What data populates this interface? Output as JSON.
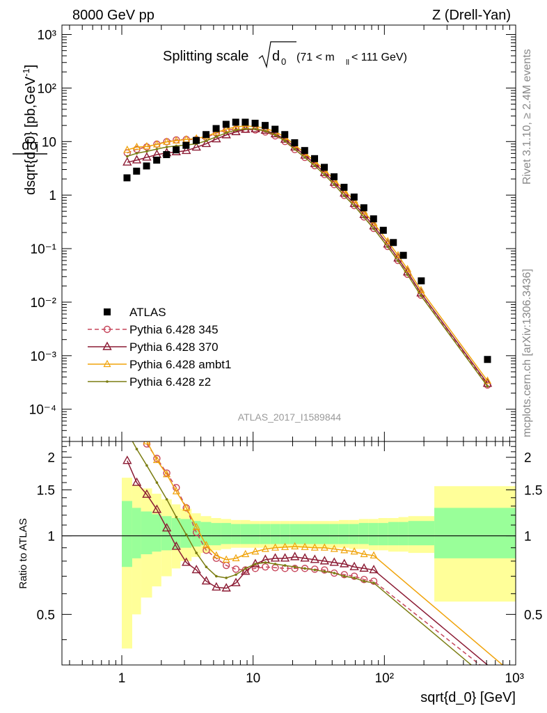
{
  "header": {
    "left": "8000 GeV pp",
    "right": "Z (Drell-Yan)"
  },
  "side_text": {
    "rivet": "Rivet 3.1.10, ≥ 2.4M events",
    "mcplots": "mcplots.cern.ch [arXiv:1306.3436]"
  },
  "chart_data": {
    "type": "scatter",
    "title_main": "Splitting scale",
    "title_sqrt": "d",
    "title_sub": "0",
    "title_range_a": "(71 < m",
    "title_range_sub": "ll",
    "title_range_b": " < 111 GeV)",
    "watermark": "ATLAS_2017_I1589844",
    "ylabel_top": "dσ",
    "ylabel_bottom": "dsqrt{d_0} [pb,GeV",
    "ylabel_sup": "-1",
    "ylabel_end": "]",
    "ratio_ylabel": "Ratio to ATLAS",
    "xlabel": "sqrt{d_0} [GeV]",
    "x_scale": "log",
    "xlim": [
      0.35,
      1000
    ],
    "y_scale": "log",
    "ylim": [
      2.5e-05,
      1500
    ],
    "ratio_ylim": [
      0.32,
      2.3
    ],
    "x_ticks": [
      "1",
      "10",
      "10²",
      "10³"
    ],
    "y_ticks": [
      "10³",
      "10²",
      "10",
      "1",
      "10⁻¹",
      "10⁻²",
      "10⁻³",
      "10⁻⁴"
    ],
    "ratio_ticks": [
      "2",
      "1.5",
      "1",
      "0.5"
    ],
    "legend_position": "bottom-left",
    "bins": [
      {
        "lo": 1.0,
        "hi": 1.2,
        "y": 2.1,
        "band_in": [
          0.76,
          1.36
        ],
        "band_out": [
          0.37,
          1.67
        ]
      },
      {
        "lo": 1.2,
        "hi": 1.4,
        "y": 2.8,
        "band_in": [
          0.82,
          1.28
        ],
        "band_out": [
          0.5,
          1.57
        ]
      },
      {
        "lo": 1.4,
        "hi": 1.7,
        "y": 3.5,
        "band_in": [
          0.85,
          1.24
        ],
        "band_out": [
          0.58,
          1.52
        ]
      },
      {
        "lo": 1.7,
        "hi": 2.0,
        "y": 4.5,
        "band_in": [
          0.87,
          1.21
        ],
        "band_out": [
          0.64,
          1.45
        ]
      },
      {
        "lo": 2.0,
        "hi": 2.4,
        "y": 5.7,
        "band_in": [
          0.88,
          1.19
        ],
        "band_out": [
          0.7,
          1.38
        ]
      },
      {
        "lo": 2.4,
        "hi": 2.8,
        "y": 7.0,
        "band_in": [
          0.89,
          1.17
        ],
        "band_out": [
          0.75,
          1.32
        ]
      },
      {
        "lo": 2.8,
        "hi": 3.4,
        "y": 8.5,
        "band_in": [
          0.9,
          1.16
        ],
        "band_out": [
          0.8,
          1.27
        ]
      },
      {
        "lo": 3.4,
        "hi": 4.0,
        "y": 10.5,
        "band_in": [
          0.91,
          1.14
        ],
        "band_out": [
          0.83,
          1.22
        ]
      },
      {
        "lo": 4.0,
        "hi": 4.8,
        "y": 13.5,
        "band_in": [
          0.92,
          1.13
        ],
        "band_out": [
          0.86,
          1.19
        ]
      },
      {
        "lo": 4.8,
        "hi": 5.7,
        "y": 17.5,
        "band_in": [
          0.92,
          1.12
        ],
        "band_out": [
          0.88,
          1.17
        ]
      },
      {
        "lo": 5.7,
        "hi": 6.8,
        "y": 21,
        "band_in": [
          0.93,
          1.12
        ],
        "band_out": [
          0.89,
          1.16
        ]
      },
      {
        "lo": 6.8,
        "hi": 8.0,
        "y": 23,
        "band_in": [
          0.93,
          1.11
        ],
        "band_out": [
          0.9,
          1.15
        ]
      },
      {
        "lo": 8.0,
        "hi": 9.5,
        "y": 23,
        "band_in": [
          0.93,
          1.11
        ],
        "band_out": [
          0.9,
          1.15
        ]
      },
      {
        "lo": 9.5,
        "hi": 11.3,
        "y": 22,
        "band_in": [
          0.93,
          1.11
        ],
        "band_out": [
          0.9,
          1.14
        ]
      },
      {
        "lo": 11.3,
        "hi": 13.5,
        "y": 20,
        "band_in": [
          0.93,
          1.11
        ],
        "band_out": [
          0.9,
          1.14
        ]
      },
      {
        "lo": 13.5,
        "hi": 16,
        "y": 17,
        "band_in": [
          0.93,
          1.11
        ],
        "band_out": [
          0.9,
          1.14
        ]
      },
      {
        "lo": 16,
        "hi": 19,
        "y": 13.5,
        "band_in": [
          0.93,
          1.11
        ],
        "band_out": [
          0.9,
          1.14
        ]
      },
      {
        "lo": 19,
        "hi": 22.6,
        "y": 9.5,
        "band_in": [
          0.93,
          1.11
        ],
        "band_out": [
          0.9,
          1.14
        ]
      },
      {
        "lo": 22.6,
        "hi": 27,
        "y": 6.8,
        "band_in": [
          0.93,
          1.11
        ],
        "band_out": [
          0.9,
          1.14
        ]
      },
      {
        "lo": 27,
        "hi": 32,
        "y": 4.8,
        "band_in": [
          0.93,
          1.11
        ],
        "band_out": [
          0.9,
          1.14
        ]
      },
      {
        "lo": 32,
        "hi": 38,
        "y": 3.3,
        "band_in": [
          0.93,
          1.11
        ],
        "band_out": [
          0.9,
          1.14
        ]
      },
      {
        "lo": 38,
        "hi": 45,
        "y": 2.2,
        "band_in": [
          0.93,
          1.11
        ],
        "band_out": [
          0.9,
          1.14
        ]
      },
      {
        "lo": 45,
        "hi": 54,
        "y": 1.4,
        "band_in": [
          0.93,
          1.11
        ],
        "band_out": [
          0.9,
          1.15
        ]
      },
      {
        "lo": 54,
        "hi": 64,
        "y": 0.92,
        "band_in": [
          0.93,
          1.11
        ],
        "band_out": [
          0.89,
          1.15
        ]
      },
      {
        "lo": 64,
        "hi": 76,
        "y": 0.58,
        "band_in": [
          0.93,
          1.12
        ],
        "band_out": [
          0.89,
          1.16
        ]
      },
      {
        "lo": 76,
        "hi": 90,
        "y": 0.36,
        "band_in": [
          0.92,
          1.12
        ],
        "band_out": [
          0.88,
          1.16
        ]
      },
      {
        "lo": 90,
        "hi": 107,
        "y": 0.22,
        "band_in": [
          0.92,
          1.12
        ],
        "band_out": [
          0.88,
          1.17
        ]
      },
      {
        "lo": 107,
        "hi": 128,
        "y": 0.13,
        "band_in": [
          0.92,
          1.13
        ],
        "band_out": [
          0.87,
          1.17
        ]
      },
      {
        "lo": 128,
        "hi": 152,
        "y": 0.075,
        "band_in": [
          0.92,
          1.13
        ],
        "band_out": [
          0.87,
          1.18
        ]
      },
      {
        "lo": 152,
        "hi": 240,
        "y": 0.025,
        "band_in": [
          0.92,
          1.14
        ],
        "band_out": [
          0.86,
          1.19
        ]
      },
      {
        "lo": 240,
        "hi": 1000,
        "y": 0.00085,
        "band_in": [
          0.82,
          1.28
        ],
        "band_out": [
          0.56,
          1.55
        ]
      }
    ],
    "series": [
      {
        "name": "ATLAS",
        "style": "data",
        "color": "#000000"
      },
      {
        "name": "Pythia 6.428 345",
        "style": "circle",
        "color": "#c6455a",
        "dashed": true,
        "ratio_x": [
          1.1,
          1.3,
          1.55,
          1.85,
          2.2,
          2.6,
          3.1,
          3.7,
          4.4,
          5.25,
          6.25,
          7.4,
          8.75,
          10.4,
          12.4,
          14.75,
          17.5,
          20.8,
          24.8,
          29.5,
          35,
          41.5,
          49.5,
          59,
          70,
          83
        ],
        "ratio": [
          2.9,
          2.55,
          2.25,
          1.98,
          1.74,
          1.53,
          1.28,
          1.03,
          0.88,
          0.82,
          0.77,
          0.745,
          0.74,
          0.75,
          0.76,
          0.755,
          0.75,
          0.75,
          0.75,
          0.745,
          0.74,
          0.72,
          0.71,
          0.7,
          0.68,
          0.67
        ],
        "ratio_end": [
          1000,
          0.25
        ]
      },
      {
        "name": "Pythia 6.428 370",
        "style": "triangle",
        "color": "#8b1a33",
        "dashed": false,
        "ratio_x": [
          1.1,
          1.3,
          1.55,
          1.85,
          2.2,
          2.6,
          3.1,
          3.7,
          4.4,
          5.25,
          6.25,
          7.4,
          8.75,
          10.4,
          12.4,
          14.75,
          17.5,
          20.8,
          24.8,
          29.5,
          35,
          41.5,
          49.5,
          59,
          70,
          83
        ],
        "ratio": [
          1.94,
          1.6,
          1.44,
          1.26,
          1.07,
          0.91,
          0.79,
          0.74,
          0.67,
          0.635,
          0.63,
          0.66,
          0.73,
          0.78,
          0.81,
          0.82,
          0.82,
          0.83,
          0.82,
          0.81,
          0.8,
          0.79,
          0.78,
          0.76,
          0.75,
          0.74
        ],
        "ratio_end": [
          1000,
          0.26
        ]
      },
      {
        "name": "Pythia 6.428 ambt1",
        "style": "triangle-open",
        "color": "#f0a30a",
        "dashed": false,
        "ratio_x": [
          1.1,
          1.3,
          1.55,
          1.85,
          2.2,
          2.6,
          3.1,
          3.7,
          4.4,
          5.25,
          6.25,
          7.4,
          8.75,
          10.4,
          12.4,
          14.75,
          17.5,
          20.8,
          24.8,
          29.5,
          35,
          41.5,
          49.5,
          59,
          70,
          83
        ],
        "ratio": [
          3.3,
          2.8,
          2.3,
          1.95,
          1.72,
          1.48,
          1.28,
          1.08,
          0.92,
          0.84,
          0.81,
          0.82,
          0.85,
          0.87,
          0.89,
          0.9,
          0.905,
          0.91,
          0.905,
          0.9,
          0.9,
          0.89,
          0.88,
          0.87,
          0.85,
          0.84
        ],
        "ratio_end": [
          1000,
          0.29
        ]
      },
      {
        "name": "Pythia 6.428 z2",
        "style": "dot",
        "color": "#7b7d12",
        "dashed": false,
        "ratio_x": [
          1.1,
          1.3,
          1.55,
          1.85,
          2.2,
          2.6,
          3.1,
          3.7,
          4.4,
          5.25,
          6.25,
          7.4,
          8.75,
          10.4,
          12.4,
          14.75,
          17.5,
          20.8,
          24.8,
          29.5,
          35,
          41.5,
          49.5,
          59,
          70,
          83
        ],
        "ratio": [
          2.5,
          2.15,
          1.86,
          1.6,
          1.38,
          1.18,
          1.01,
          0.86,
          0.76,
          0.7,
          0.69,
          0.71,
          0.75,
          0.78,
          0.79,
          0.78,
          0.77,
          0.76,
          0.75,
          0.74,
          0.73,
          0.72,
          0.7,
          0.69,
          0.67,
          0.66
        ],
        "ratio_end": [
          1000,
          0.23
        ]
      }
    ]
  }
}
